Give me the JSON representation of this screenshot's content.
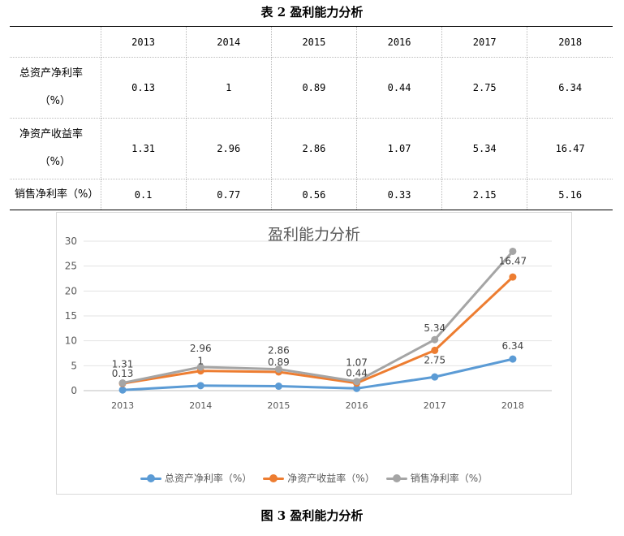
{
  "table_caption": "表 2 盈利能力分析",
  "figure_caption": "图 3 盈利能力分析",
  "table": {
    "years": [
      "2013",
      "2014",
      "2015",
      "2016",
      "2017",
      "2018"
    ],
    "rows": [
      {
        "label": "总资产净利率（%）",
        "label_lines": [
          "总资产净利率",
          "（%）"
        ],
        "values": [
          "0.13",
          "1",
          "0.89",
          "0.44",
          "2.75",
          "6.34"
        ]
      },
      {
        "label": "净资产收益率（%）",
        "label_lines": [
          "净资产收益率",
          "（%）"
        ],
        "values": [
          "1.31",
          "2.96",
          "2.86",
          "1.07",
          "5.34",
          "16.47"
        ]
      },
      {
        "label": "销售净利率（%）",
        "label_lines": [
          "销售净利率（%）"
        ],
        "values": [
          "0.1",
          "0.77",
          "0.56",
          "0.33",
          "2.15",
          "5.16"
        ]
      }
    ]
  },
  "chart_data": {
    "type": "line",
    "stacked": true,
    "title": "盈利能力分析",
    "categories": [
      "2013",
      "2014",
      "2015",
      "2016",
      "2017",
      "2018"
    ],
    "ylim": [
      0,
      30
    ],
    "yticks": [
      "0",
      "5",
      "10",
      "15",
      "20",
      "25",
      "30"
    ],
    "grid": true,
    "legend_position": "bottom",
    "series": [
      {
        "name": "总资产净利率（%）",
        "color": "#5B9BD5",
        "values": [
          0.13,
          1,
          0.89,
          0.44,
          2.75,
          6.34
        ],
        "labels": [
          "0.13",
          "1",
          "0.89",
          "0.44",
          "2.75",
          "6.34"
        ]
      },
      {
        "name": "净资产收益率（%）",
        "color": "#ED7D31",
        "values": [
          1.31,
          2.96,
          2.86,
          1.07,
          5.34,
          16.47
        ],
        "labels": [
          "1.31",
          "2.96",
          "2.86",
          "1.07",
          "5.34",
          "16.47"
        ]
      },
      {
        "name": "销售净利率（%）",
        "color": "#A5A5A5",
        "values": [
          0.1,
          0.77,
          0.56,
          0.33,
          2.15,
          5.16
        ],
        "labels": []
      }
    ]
  }
}
